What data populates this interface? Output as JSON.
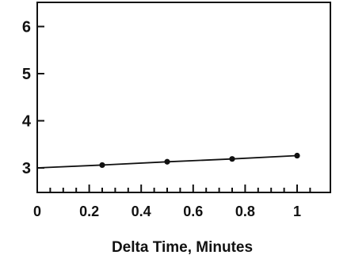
{
  "chart_data": {
    "type": "line",
    "title": "",
    "xlabel": "Delta Time, Minutes",
    "ylabel": "",
    "xlim": [
      0,
      1.1
    ],
    "ylim": [
      2.5,
      6.5
    ],
    "x_ticks": [
      0,
      0.2,
      0.4,
      0.6,
      0.8,
      1
    ],
    "x_tick_labels": [
      "0",
      "0.2",
      "0.4",
      "0.6",
      "0.8",
      "1"
    ],
    "y_ticks": [
      3,
      4,
      5,
      6
    ],
    "y_tick_labels": [
      "3",
      "4",
      "5",
      "6"
    ],
    "grid": false,
    "legend": "none",
    "series": [
      {
        "x": [
          0,
          0.25,
          0.5,
          0.75,
          1.0
        ],
        "y": [
          3.0,
          3.06,
          3.13,
          3.19,
          3.26
        ],
        "markers": [
          false,
          true,
          true,
          true,
          true
        ],
        "color": "#111111"
      }
    ]
  }
}
